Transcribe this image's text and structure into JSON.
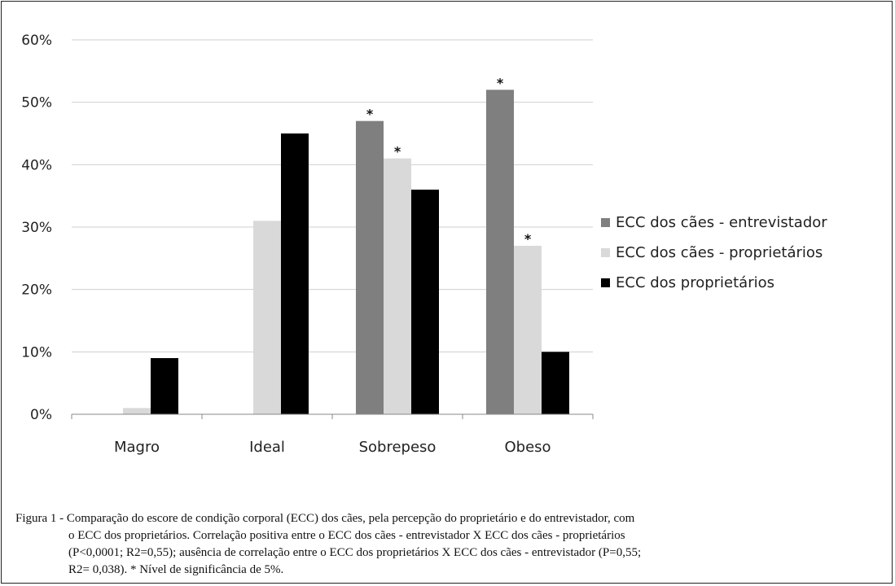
{
  "chart_data": {
    "type": "bar",
    "categories": [
      "Magro",
      "Ideal",
      "Sobrepeso",
      "Obeso"
    ],
    "series": [
      {
        "name": "ECC dos cães - entrevistador",
        "color": "#7f7f7f",
        "values": [
          0,
          0,
          47,
          52
        ],
        "significant": [
          false,
          false,
          true,
          true
        ]
      },
      {
        "name": "ECC dos cães - proprietários",
        "color": "#d9d9d9",
        "values": [
          1,
          31,
          41,
          27
        ],
        "significant": [
          false,
          false,
          true,
          true
        ]
      },
      {
        "name": "ECC dos proprietários",
        "color": "#000000",
        "values": [
          9,
          45,
          36,
          10
        ],
        "significant": [
          false,
          false,
          false,
          false
        ]
      }
    ],
    "ylim": [
      0,
      60
    ],
    "yticks": [
      "0%",
      "10%",
      "20%",
      "30%",
      "40%",
      "50%",
      "60%"
    ],
    "grid": true,
    "legend_position": "right",
    "significance_marker": "*"
  },
  "caption": {
    "line1": "Figura 1 - Comparação do escore de condição corporal (ECC) dos cães, pela percepção do proprietário e do entrevistador, com",
    "line2": "o ECC dos proprietários. Correlação positiva entre o ECC dos cães - entrevistador X ECC dos cães - proprietários",
    "line3": "(P<0,0001; R2=0,55); ausência de correlação entre o ECC dos proprietários X ECC dos cães - entrevistador (P=0,55;",
    "line4": "R2= 0,038). * Nível de significância de 5%."
  }
}
